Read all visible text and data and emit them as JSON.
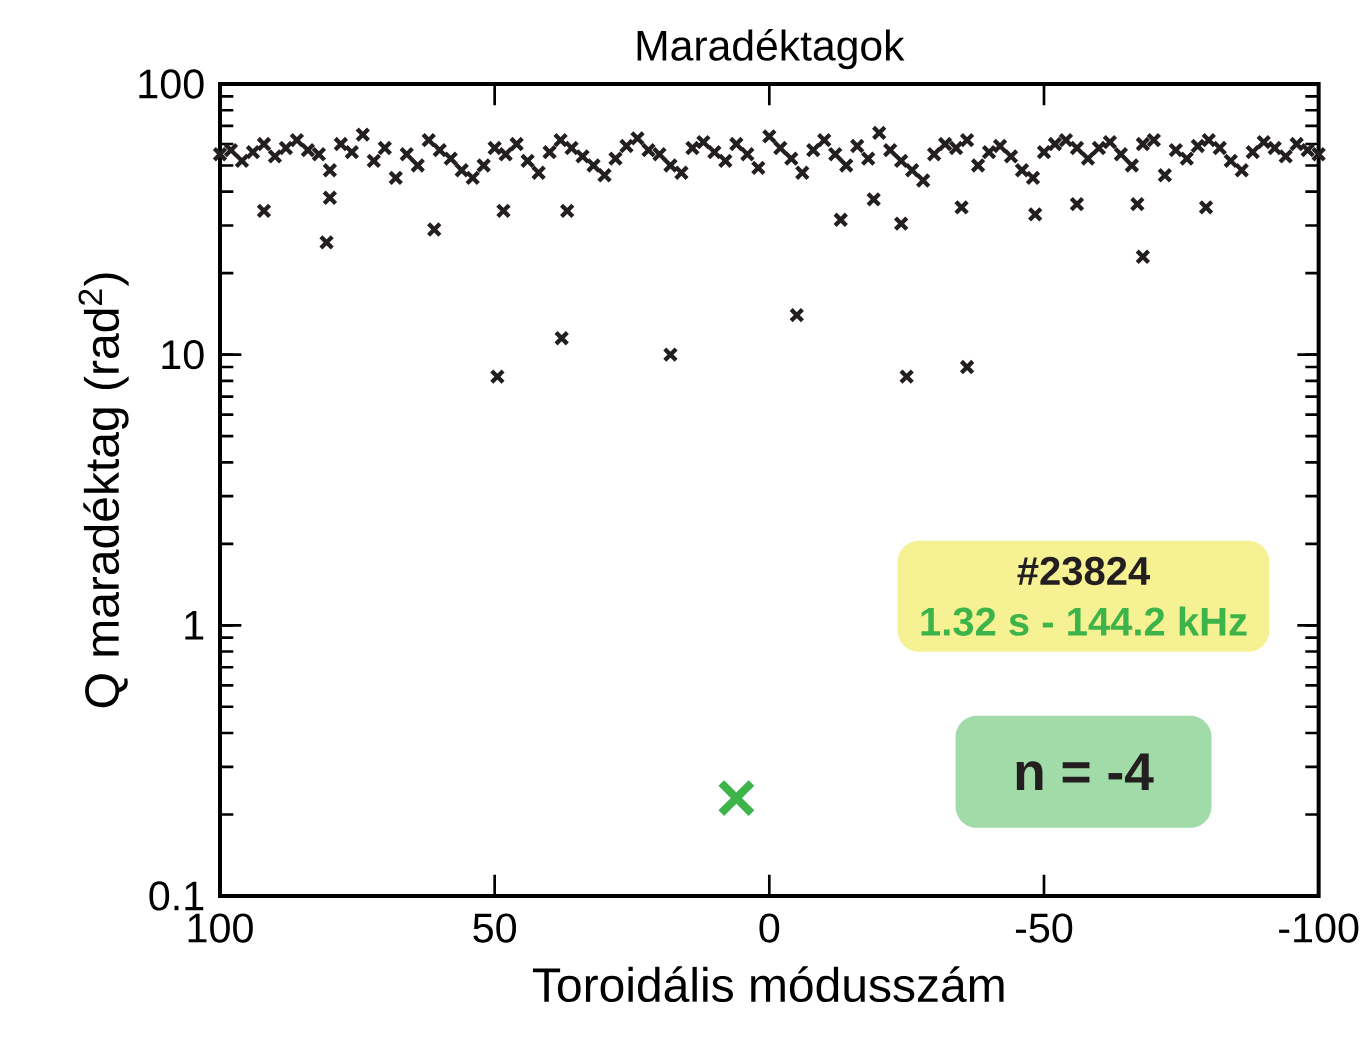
{
  "chart_data": {
    "type": "scatter",
    "title": "Maradéktagok",
    "xlabel": "Toroidális módusszám",
    "ylabel": "Q maradéktag (rad$^{2}$)",
    "xlim": [
      100,
      -100
    ],
    "xticks": [
      100,
      50,
      0,
      -50,
      -100
    ],
    "ylim": [
      0.1,
      100
    ],
    "yticks": [
      0.1,
      1,
      10,
      100
    ],
    "log": "y",
    "marker": "cross",
    "series": [
      {
        "color": "#231f20",
        "x": [
          100,
          98,
          96,
          94,
          92,
          90,
          88,
          86,
          84,
          82,
          80,
          78,
          76,
          74,
          72,
          70,
          68,
          66,
          64,
          62,
          60,
          58,
          56,
          54,
          52,
          50,
          48,
          46,
          44,
          42,
          40,
          38,
          36,
          34,
          32,
          30,
          28,
          26,
          24,
          22,
          20,
          18,
          16,
          14,
          12,
          10,
          8,
          6,
          4,
          2,
          0,
          -2,
          -4,
          -6,
          -8,
          -10,
          -12,
          -14,
          -16,
          -18,
          -20,
          -22,
          -24,
          -26,
          -28,
          -30,
          -32,
          -34,
          -36,
          -38,
          -40,
          -42,
          -44,
          -46,
          -48,
          -50,
          -52,
          -54,
          -56,
          -58,
          -60,
          -62,
          -64,
          -66,
          -68,
          -70,
          -72,
          -74,
          -76,
          -78,
          -80,
          -82,
          -84,
          -86,
          -88,
          -90,
          -92,
          -94,
          -96,
          -98,
          -100,
          49.5,
          37.8,
          18,
          -5,
          -25,
          -36,
          -68,
          80.6,
          92,
          61,
          48.4,
          36.8,
          80,
          -13,
          -24,
          -35,
          -48.4,
          -56,
          -67,
          -79.5,
          -19
        ],
        "values": [
          55,
          57,
          52,
          56,
          60,
          54,
          58,
          62,
          57,
          55,
          48,
          60,
          56,
          65,
          52,
          58,
          45,
          55,
          50,
          62,
          57,
          53,
          48,
          45,
          50,
          58,
          55,
          60,
          52,
          47,
          56,
          62,
          58,
          54,
          50,
          46,
          53,
          59,
          63,
          57,
          55,
          50,
          47,
          58,
          61,
          56,
          52,
          60,
          55,
          49,
          64,
          58,
          53,
          47,
          57,
          62,
          55,
          50,
          59,
          53,
          66,
          57,
          52,
          48,
          44,
          55,
          60,
          58,
          62,
          50,
          56,
          59,
          54,
          48,
          45,
          56,
          60,
          62,
          58,
          53,
          58,
          61,
          55,
          50,
          60,
          62,
          46,
          57,
          53,
          59,
          62,
          58,
          52,
          48,
          56,
          61,
          58,
          54,
          60,
          57,
          55,
          8.3,
          11.5,
          10,
          14,
          8.3,
          9,
          23,
          26,
          34,
          29,
          34,
          34,
          38,
          31.5,
          30.5,
          35,
          33,
          36,
          36,
          35,
          37.5
        ]
      },
      {
        "color": "#3cb44a",
        "x": [
          6
        ],
        "values": [
          0.23
        ]
      }
    ],
    "annotations": [
      "#23824",
      "1.32 s - 144.2 kHz",
      "n = -4"
    ]
  }
}
